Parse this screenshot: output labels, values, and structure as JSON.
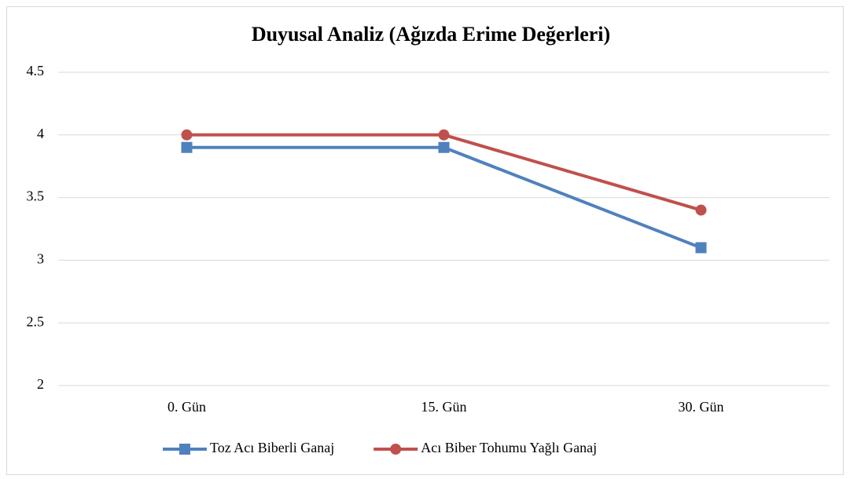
{
  "chart_data": {
    "type": "line",
    "title": "Duyusal Analiz (Ağızda Erime Değerleri)",
    "categories": [
      "0. Gün",
      "15. Gün",
      "30. Gün"
    ],
    "series": [
      {
        "name": "Toz Acı Biberli Ganaj",
        "color": "#4f81bd",
        "marker": "square",
        "values": [
          3.9,
          3.9,
          3.1
        ]
      },
      {
        "name": "Acı Biber Tohumu Yağlı Ganaj",
        "color": "#c0504d",
        "marker": "circle",
        "values": [
          4,
          4,
          3.4
        ]
      }
    ],
    "ylim": [
      2,
      4.5
    ],
    "yticks": [
      2,
      2.5,
      3,
      3.5,
      4,
      4.5
    ],
    "grid": true,
    "legend": "bottom"
  }
}
